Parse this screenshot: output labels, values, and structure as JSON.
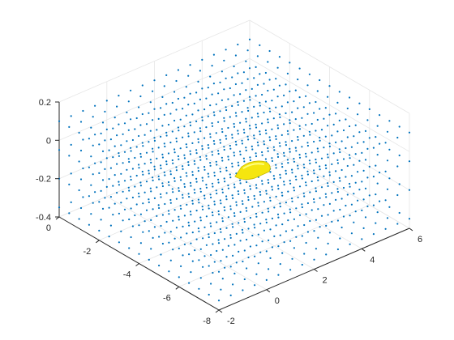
{
  "chart_data": {
    "type": "scatter",
    "title": "",
    "xlabel": "",
    "ylabel": "",
    "zlabel": "",
    "xlim": [
      -8,
      0
    ],
    "ylim": [
      -2,
      6
    ],
    "zlim": [
      -0.4,
      0.2
    ],
    "grid": true,
    "view": "3d",
    "x_ticks": [
      {
        "value": 0,
        "label": "0"
      },
      {
        "value": -2,
        "label": "-2"
      },
      {
        "value": -4,
        "label": "-4"
      },
      {
        "value": -6,
        "label": "-6"
      },
      {
        "value": -8,
        "label": "-8"
      }
    ],
    "y_ticks": [
      {
        "value": 6,
        "label": "6"
      },
      {
        "value": 4,
        "label": "4"
      },
      {
        "value": 2,
        "label": "2"
      },
      {
        "value": 0,
        "label": "0"
      },
      {
        "value": -2,
        "label": "-2"
      }
    ],
    "z_ticks": [
      {
        "value": 0.2,
        "label": "0.2"
      },
      {
        "value": 0,
        "label": "0"
      },
      {
        "value": -0.2,
        "label": "-0.2"
      },
      {
        "value": -0.4,
        "label": "-0.4"
      }
    ],
    "series": [
      {
        "kind": "point-grid",
        "color": "#0072bd",
        "x_range": [
          -8,
          0
        ],
        "y_range": [
          -2,
          6
        ],
        "z_range": [
          -0.35,
          0.1
        ],
        "x_count": 17,
        "y_count": 17,
        "z_count": 4
      },
      {
        "kind": "surface-object",
        "color": "#f5e60f",
        "edge_color": "#c8b800",
        "center": [
          -3.5,
          3.2,
          -0.22
        ],
        "description_shape": "bullet"
      }
    ]
  }
}
